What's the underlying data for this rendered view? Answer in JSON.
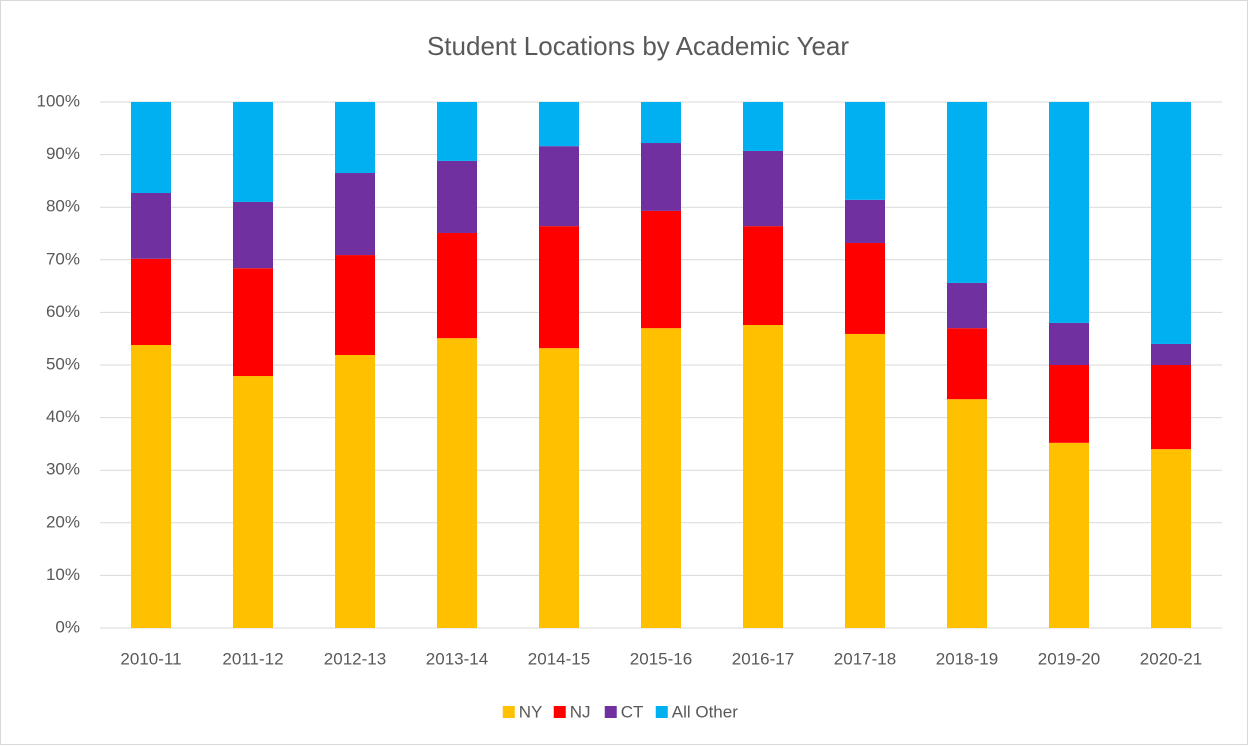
{
  "chart_data": {
    "type": "stacked_bar",
    "title": "Student Locations by Academic Year",
    "categories": [
      "2010-11",
      "2011-12",
      "2012-13",
      "2013-14",
      "2014-15",
      "2015-16",
      "2016-17",
      "2017-18",
      "2018-19",
      "2019-20",
      "2020-21"
    ],
    "series": [
      {
        "name": "NY",
        "color": "#ffc000",
        "values": [
          53.8,
          47.9,
          51.9,
          55.1,
          53.2,
          57.0,
          57.6,
          55.9,
          43.5,
          35.2,
          34.0
        ]
      },
      {
        "name": "NJ",
        "color": "#ff0000",
        "values": [
          16.4,
          20.5,
          19.0,
          20.0,
          23.2,
          22.3,
          18.8,
          17.3,
          13.5,
          14.8,
          16.0
        ]
      },
      {
        "name": "CT",
        "color": "#7030a0",
        "values": [
          12.5,
          12.6,
          15.6,
          13.7,
          15.2,
          12.9,
          14.3,
          8.2,
          8.6,
          8.0,
          4.0
        ]
      },
      {
        "name": "All Other",
        "color": "#00b0f0",
        "values": [
          17.3,
          19.0,
          13.5,
          11.2,
          8.4,
          7.8,
          9.3,
          18.6,
          34.4,
          42.0,
          46.0
        ]
      }
    ],
    "ylim": [
      0,
      100
    ],
    "yticks": [
      {
        "value": 0,
        "label": "0%"
      },
      {
        "value": 10,
        "label": "10%"
      },
      {
        "value": 20,
        "label": "20%"
      },
      {
        "value": 30,
        "label": "30%"
      },
      {
        "value": 40,
        "label": "40%"
      },
      {
        "value": 50,
        "label": "50%"
      },
      {
        "value": 60,
        "label": "60%"
      },
      {
        "value": 70,
        "label": "70%"
      },
      {
        "value": 80,
        "label": "80%"
      },
      {
        "value": 90,
        "label": "90%"
      },
      {
        "value": 100,
        "label": "100%"
      }
    ],
    "grid": true,
    "legend": "bottom"
  }
}
